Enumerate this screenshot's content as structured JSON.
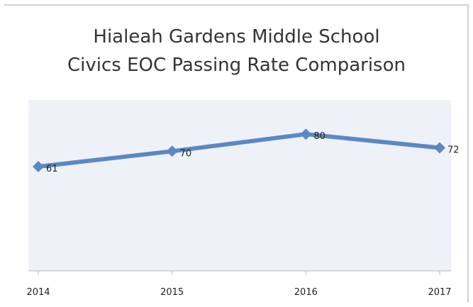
{
  "chart_data": {
    "type": "line",
    "title": [
      "Hialeah Gardens Middle School",
      "Civics EOC Passing Rate Comparison"
    ],
    "categories": [
      "2014",
      "2015",
      "2016",
      "2017"
    ],
    "series": [
      {
        "values": [
          61,
          70,
          80,
          72
        ],
        "data_labels": [
          "61",
          "70",
          "80",
          "72"
        ]
      }
    ],
    "xlabel": "",
    "ylabel": "",
    "ylim": [
      0,
      100
    ],
    "y_axis_labels_shown": false,
    "grid": false,
    "legend": "none",
    "colors": {
      "line": "#5b87c5",
      "marker": "#5b87c5",
      "plot_background": "#eef2f8",
      "axis": "#b8b8b8",
      "text": "#222222"
    },
    "marker": "diamond"
  }
}
